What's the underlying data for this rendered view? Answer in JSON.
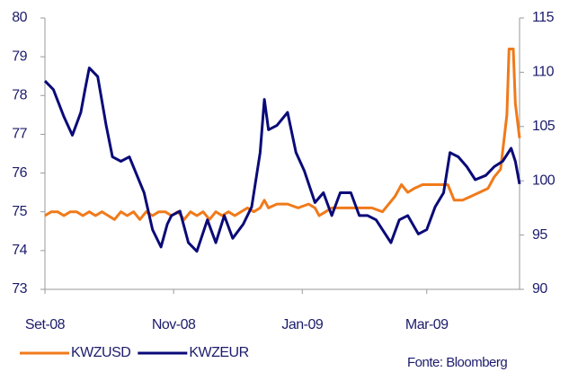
{
  "chart_data": {
    "type": "line",
    "series": [
      {
        "name": "KWZUSD",
        "color": "#f07a1a",
        "x": [
          0,
          3,
          6,
          9,
          12,
          15,
          18,
          21,
          24,
          27,
          30,
          33,
          36,
          39,
          42,
          45,
          48,
          51,
          54,
          57,
          60,
          63,
          66,
          69,
          72,
          75,
          78,
          81,
          84,
          87,
          90,
          93,
          96,
          99,
          102,
          104,
          106,
          110,
          115,
          120,
          125,
          128,
          130,
          133,
          136,
          140,
          145,
          150,
          155,
          160,
          163,
          166,
          169,
          172,
          175,
          179,
          185,
          191,
          194,
          198,
          202,
          206,
          210,
          213,
          216,
          219,
          220,
          222,
          223,
          225
        ],
        "values": [
          74.9,
          75.0,
          75.0,
          74.9,
          75.0,
          75.0,
          74.9,
          75.0,
          74.9,
          75.0,
          74.9,
          74.8,
          75.0,
          74.9,
          75.0,
          74.8,
          75.0,
          74.9,
          75.0,
          75.0,
          74.9,
          75.0,
          74.8,
          75.0,
          74.9,
          75.0,
          74.8,
          75.0,
          74.9,
          75.0,
          74.9,
          75.0,
          75.1,
          75.0,
          75.1,
          75.3,
          75.1,
          75.2,
          75.2,
          75.1,
          75.2,
          75.1,
          74.9,
          75.0,
          75.1,
          75.1,
          75.1,
          75.1,
          75.1,
          75.0,
          75.2,
          75.4,
          75.7,
          75.5,
          75.6,
          75.7,
          75.7,
          75.7,
          75.3,
          75.3,
          75.4,
          75.5,
          75.6,
          75.9,
          76.1,
          77.5,
          79.2,
          79.2,
          77.8,
          76.9
        ]
      },
      {
        "name": "KWZEUR",
        "color": "#0a0a78",
        "axis": "y2",
        "x": [
          0,
          4,
          9,
          13,
          17,
          19,
          21,
          25,
          29,
          32,
          36,
          40,
          47,
          51,
          55,
          58,
          60,
          64,
          68,
          72,
          77,
          81,
          85,
          89,
          94,
          98,
          102,
          104,
          106,
          110,
          115,
          119,
          123,
          128,
          132,
          136,
          140,
          145,
          149,
          153,
          157,
          164,
          168,
          172,
          177,
          181,
          185,
          189,
          192,
          196,
          200,
          204,
          209,
          213,
          217,
          221,
          223,
          225
        ],
        "values": [
          109.2,
          108.4,
          105.9,
          104.2,
          106.3,
          108.4,
          110.4,
          109.6,
          105.1,
          102.2,
          101.8,
          102.2,
          98.9,
          95.5,
          93.9,
          96.0,
          96.8,
          97.2,
          94.3,
          93.5,
          96.4,
          94.3,
          96.8,
          94.7,
          96.0,
          97.6,
          102.6,
          107.5,
          104.7,
          105.1,
          106.3,
          102.6,
          100.9,
          98.0,
          98.9,
          96.8,
          98.9,
          98.9,
          96.8,
          96.8,
          96.4,
          94.3,
          96.4,
          96.8,
          95.1,
          95.5,
          97.6,
          98.9,
          102.6,
          102.2,
          101.3,
          100.1,
          100.5,
          101.3,
          101.8,
          103.0,
          101.8,
          99.7
        ]
      }
    ],
    "xlim": [
      0,
      225
    ],
    "xticks": [
      {
        "value": 0,
        "label": "Set-08"
      },
      {
        "value": 61,
        "label": "Nov-08"
      },
      {
        "value": 122,
        "label": "Jan-09"
      },
      {
        "value": 181,
        "label": "Mar-09"
      }
    ],
    "ylim": [
      73,
      80
    ],
    "yticks": [
      73,
      74,
      75,
      76,
      77,
      78,
      79,
      80
    ],
    "y2lim": [
      90,
      115
    ],
    "y2ticks": [
      90,
      95,
      100,
      105,
      110,
      115
    ],
    "legend": "bottom-left",
    "annotation": "Fonte: Bloomberg"
  }
}
